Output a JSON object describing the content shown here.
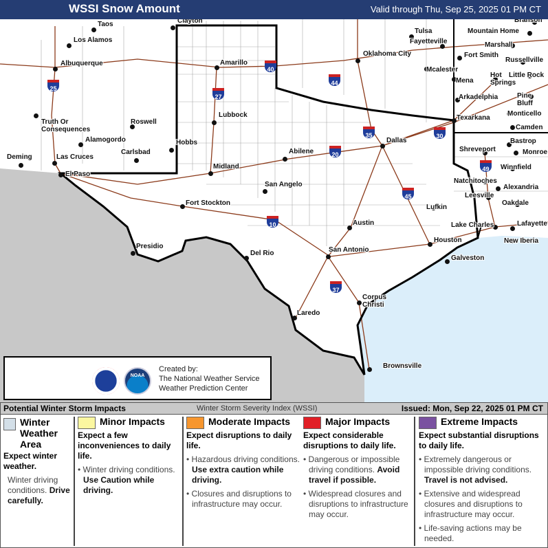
{
  "header": {
    "title": "WSSI Snow Amount",
    "valid": "Valid through Thu, Sep 25, 2025 01 PM CT"
  },
  "map": {
    "colors": {
      "land": "#ffffff",
      "mexico": "#c8c8c8",
      "water": "#dbeefa",
      "highway": "#8b3a1a",
      "border": "#000000"
    },
    "cities": [
      "Taos",
      "Clayton",
      "Los Alamos",
      "Albuquerque",
      "Amarillo",
      "Tulsa",
      "Fayetteville",
      "Branson",
      "Mountain Home",
      "Marshall",
      "Fort Smith",
      "Russellville",
      "Oklahoma City",
      "Mcalester",
      "Mena",
      "Hot Springs",
      "Little Rock",
      "Pine Bluff",
      "Arkadelphia",
      "Truth Or Consequences",
      "Roswell",
      "Lubbock",
      "Monticello",
      "Texarkana",
      "Camden",
      "Alamogordo",
      "Carlsbad",
      "Hobbs",
      "Abilene",
      "Dallas",
      "Shreveport",
      "Bastrop",
      "Monroe",
      "Deming",
      "Las Cruces",
      "Midland",
      "Winnfield",
      "El Paso",
      "Natchitoches",
      "Alexandria",
      "San Angelo",
      "Leesville",
      "Lufkin",
      "Oakdale",
      "Fort Stockton",
      "Lake Charles",
      "Lafayette",
      "Austin",
      "Houston",
      "New Iberia",
      "Presidio",
      "Del Rio",
      "San Antonio",
      "Galveston",
      "Corpus Christi",
      "Laredo",
      "Brownsville"
    ],
    "interstates": [
      "25",
      "40",
      "27",
      "44",
      "35",
      "30",
      "20",
      "49",
      "45",
      "10",
      "37"
    ]
  },
  "credit": {
    "line1": "Created by:",
    "line2": "The National Weather Service",
    "line3": "Weather Prediction Center",
    "logo1": "NATIONAL WEATHER SERVICE",
    "logo2": "NOAA"
  },
  "legend": {
    "header_left": "Potential Winter Storm Impacts",
    "header_mid": "Winter Storm Severity Index (WSSI)",
    "issued": "Issued: Mon, Sep 22, 2025 01 PM CT",
    "categories": [
      {
        "name": "Winter Weather Area",
        "color": "#d3dfe8",
        "desc": "Expect winter weather.",
        "b1": "Winter driving conditions.",
        "b1s": "Drive carefully."
      },
      {
        "name": "Minor Impacts",
        "color": "#fbf7a0",
        "desc": "Expect a few inconveniences to daily life.",
        "b1": "Winter driving conditions.",
        "b1s": "Use Caution while driving."
      },
      {
        "name": "Moderate Impacts",
        "color": "#f7962e",
        "desc": "Expect disruptions to daily life.",
        "b1": "Hazardous driving conditions.",
        "b1s": "Use extra caution while driving.",
        "b2": "Closures and disruptions to infrastructure may occur."
      },
      {
        "name": "Major Impacts",
        "color": "#e11f26",
        "desc": "Expect considerable disruptions to daily life.",
        "b1": "Dangerous or impossible driving conditions.",
        "b1s": "Avoid travel if possible.",
        "b2": "Widespread closures and disruptions to infrastructure may occur."
      },
      {
        "name": "Extreme Impacts",
        "color": "#7a51a0",
        "desc": "Expect substantial disruptions to daily life.",
        "b1": "Extremely dangerous or impossible driving conditions.",
        "b1s": "Travel is not advised.",
        "b2": "Extensive and widespread closures and disruptions to infrastructure may occur.",
        "b3": "Life-saving actions may be needed."
      }
    ]
  }
}
